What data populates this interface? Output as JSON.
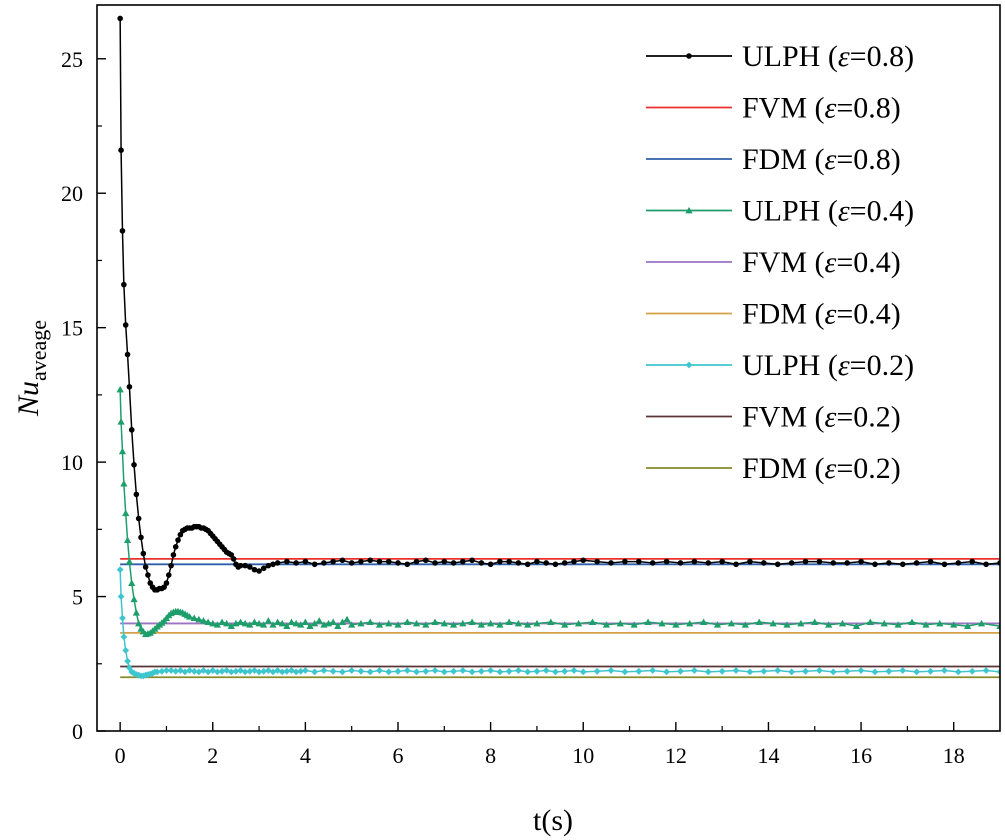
{
  "chart_data": {
    "type": "line",
    "title": "",
    "xlabel": "t(s)",
    "ylabel": {
      "main": "Nu",
      "sub": "aveage"
    },
    "xlim": [
      -0.5,
      19
    ],
    "ylim": [
      0,
      27
    ],
    "x_ticks": [
      "0",
      "2",
      "4",
      "6",
      "8",
      "10",
      "12",
      "14",
      "16",
      "18"
    ],
    "y_ticks": [
      "0",
      "5",
      "10",
      "15",
      "20",
      "25"
    ],
    "grid": false,
    "legend_position": "top-right",
    "series": [
      {
        "name": "ULPH (ε=0.8)",
        "name_prefix": "ULPH (",
        "name_symbol": "ε",
        "name_suffix": "=0.8)",
        "color": "#000000",
        "marker": "circle",
        "x": [
          0.0,
          0.02,
          0.05,
          0.08,
          0.12,
          0.16,
          0.2,
          0.25,
          0.3,
          0.35,
          0.4,
          0.45,
          0.5,
          0.55,
          0.6,
          0.65,
          0.7,
          0.75,
          0.8,
          0.85,
          0.9,
          0.95,
          1.0,
          1.05,
          1.1,
          1.15,
          1.2,
          1.25,
          1.3,
          1.35,
          1.4,
          1.45,
          1.5,
          1.55,
          1.6,
          1.65,
          1.7,
          1.75,
          1.8,
          1.85,
          1.9,
          1.95,
          2.0,
          2.05,
          2.1,
          2.15,
          2.2,
          2.25,
          2.3,
          2.35,
          2.4,
          2.45,
          2.5,
          2.55,
          2.6,
          2.7,
          2.8,
          2.9,
          3.0,
          3.1,
          3.2,
          3.3,
          3.4,
          3.6,
          3.8,
          4.0,
          4.2,
          4.4,
          4.6,
          4.8,
          5.0,
          5.2,
          5.4,
          5.6,
          5.8,
          6.0,
          6.2,
          6.4,
          6.6,
          6.8,
          7.0,
          7.2,
          7.4,
          7.6,
          7.8,
          8.0,
          8.2,
          8.4,
          8.6,
          8.8,
          9.0,
          9.2,
          9.4,
          9.6,
          9.8,
          10.0,
          10.3,
          10.6,
          10.9,
          11.2,
          11.5,
          11.8,
          12.1,
          12.4,
          12.7,
          13.0,
          13.3,
          13.6,
          13.9,
          14.2,
          14.5,
          14.8,
          15.1,
          15.4,
          15.7,
          16.0,
          16.3,
          16.6,
          16.9,
          17.2,
          17.5,
          17.8,
          18.1,
          18.4,
          18.7,
          19.0
        ],
        "values": [
          26.5,
          21.6,
          18.6,
          16.6,
          15.1,
          14.0,
          12.8,
          11.2,
          9.9,
          8.8,
          7.9,
          7.2,
          6.6,
          6.1,
          5.8,
          5.5,
          5.35,
          5.25,
          5.25,
          5.3,
          5.3,
          5.35,
          5.5,
          5.8,
          6.15,
          6.55,
          6.85,
          7.1,
          7.3,
          7.45,
          7.5,
          7.55,
          7.55,
          7.55,
          7.6,
          7.6,
          7.6,
          7.55,
          7.55,
          7.5,
          7.45,
          7.35,
          7.25,
          7.15,
          7.05,
          6.95,
          6.85,
          6.75,
          6.65,
          6.6,
          6.55,
          6.4,
          6.2,
          6.1,
          6.15,
          6.15,
          6.1,
          6.0,
          5.95,
          6.05,
          6.15,
          6.2,
          6.25,
          6.3,
          6.25,
          6.3,
          6.2,
          6.25,
          6.3,
          6.35,
          6.25,
          6.3,
          6.35,
          6.3,
          6.3,
          6.25,
          6.2,
          6.3,
          6.35,
          6.25,
          6.3,
          6.25,
          6.3,
          6.35,
          6.25,
          6.2,
          6.3,
          6.3,
          6.25,
          6.2,
          6.3,
          6.25,
          6.2,
          6.25,
          6.3,
          6.35,
          6.3,
          6.25,
          6.3,
          6.3,
          6.25,
          6.3,
          6.25,
          6.3,
          6.25,
          6.3,
          6.2,
          6.3,
          6.25,
          6.2,
          6.25,
          6.3,
          6.3,
          6.25,
          6.25,
          6.3,
          6.2,
          6.25,
          6.2,
          6.25,
          6.3,
          6.2,
          6.25,
          6.3,
          6.2,
          6.25
        ]
      },
      {
        "name": "FVM (ε=0.8)",
        "name_prefix": "FVM (",
        "name_symbol": "ε",
        "name_suffix": "=0.8)",
        "color": "#e8312c",
        "marker": "none",
        "x": [
          0.0,
          19.0
        ],
        "values": [
          6.4,
          6.4
        ]
      },
      {
        "name": "FDM (ε=0.8)",
        "name_prefix": "FDM (",
        "name_symbol": "ε",
        "name_suffix": "=0.8)",
        "color": "#2f5fa8",
        "marker": "none",
        "x": [
          0.0,
          19.0
        ],
        "values": [
          6.2,
          6.2
        ]
      },
      {
        "name": "ULPH (ε=0.4)",
        "name_prefix": "ULPH (",
        "name_symbol": "ε",
        "name_suffix": "=0.4)",
        "color": "#1e9e6a",
        "marker": "triangle",
        "x": [
          0.0,
          0.02,
          0.05,
          0.08,
          0.12,
          0.16,
          0.2,
          0.25,
          0.3,
          0.35,
          0.4,
          0.45,
          0.5,
          0.55,
          0.6,
          0.65,
          0.7,
          0.75,
          0.8,
          0.85,
          0.9,
          0.95,
          1.0,
          1.05,
          1.1,
          1.15,
          1.2,
          1.25,
          1.3,
          1.35,
          1.4,
          1.45,
          1.5,
          1.6,
          1.7,
          1.8,
          1.9,
          2.0,
          2.1,
          2.2,
          2.3,
          2.4,
          2.5,
          2.6,
          2.7,
          2.8,
          2.9,
          3.0,
          3.1,
          3.2,
          3.3,
          3.4,
          3.5,
          3.6,
          3.7,
          3.8,
          3.9,
          4.0,
          4.1,
          4.2,
          4.3,
          4.4,
          4.5,
          4.6,
          4.7,
          4.8,
          4.9,
          5.0,
          5.2,
          5.4,
          5.6,
          5.8,
          6.0,
          6.2,
          6.4,
          6.6,
          6.8,
          7.0,
          7.2,
          7.4,
          7.6,
          7.8,
          8.0,
          8.2,
          8.4,
          8.6,
          8.8,
          9.0,
          9.3,
          9.6,
          9.9,
          10.2,
          10.5,
          10.8,
          11.1,
          11.4,
          11.7,
          12.0,
          12.3,
          12.6,
          12.9,
          13.2,
          13.5,
          13.8,
          14.1,
          14.4,
          14.7,
          15.0,
          15.3,
          15.6,
          15.9,
          16.2,
          16.5,
          16.8,
          17.1,
          17.4,
          17.7,
          18.0,
          18.3,
          18.6,
          19.0
        ],
        "values": [
          12.7,
          11.5,
          10.4,
          9.2,
          8.1,
          7.1,
          6.3,
          5.5,
          4.9,
          4.4,
          4.0,
          3.8,
          3.7,
          3.6,
          3.62,
          3.65,
          3.72,
          3.8,
          3.88,
          3.95,
          4.02,
          4.1,
          4.2,
          4.3,
          4.38,
          4.42,
          4.45,
          4.45,
          4.42,
          4.4,
          4.35,
          4.3,
          4.25,
          4.2,
          4.15,
          4.1,
          4.05,
          4.0,
          3.95,
          4.05,
          4.0,
          3.9,
          4.0,
          4.05,
          4.0,
          3.95,
          4.05,
          4.0,
          3.95,
          4.1,
          3.95,
          4.05,
          4.0,
          3.9,
          4.05,
          4.0,
          3.95,
          4.05,
          3.9,
          4.0,
          4.1,
          3.95,
          4.0,
          4.05,
          3.9,
          4.05,
          4.15,
          3.95,
          4.0,
          4.05,
          3.95,
          4.0,
          3.95,
          4.05,
          4.0,
          3.95,
          4.05,
          4.0,
          3.95,
          4.0,
          4.05,
          3.95,
          4.0,
          3.95,
          4.05,
          4.0,
          3.95,
          4.0,
          4.05,
          3.95,
          4.0,
          4.05,
          3.95,
          4.0,
          3.95,
          4.05,
          4.0,
          3.95,
          4.0,
          4.05,
          3.95,
          4.0,
          3.95,
          4.05,
          4.0,
          3.95,
          4.0,
          4.05,
          3.95,
          4.0,
          3.9,
          4.05,
          4.0,
          3.95,
          4.05,
          3.95,
          4.0,
          3.95,
          3.9,
          4.0,
          3.9
        ]
      },
      {
        "name": "FVM (ε=0.4)",
        "name_prefix": "FVM (",
        "name_symbol": "ε",
        "name_suffix": "=0.4)",
        "color": "#9b72c4",
        "marker": "none",
        "x": [
          0.0,
          19.0
        ],
        "values": [
          4.0,
          4.0
        ]
      },
      {
        "name": "FDM (ε=0.4)",
        "name_prefix": "FDM (",
        "name_symbol": "ε",
        "name_suffix": "=0.4)",
        "color": "#d4a145",
        "marker": "none",
        "x": [
          0.0,
          19.0
        ],
        "values": [
          3.65,
          3.65
        ]
      },
      {
        "name": "ULPH (ε=0.2)",
        "name_prefix": "ULPH (",
        "name_symbol": "ε",
        "name_suffix": "=0.2)",
        "color": "#3ec6cf",
        "marker": "diamond",
        "x": [
          0.0,
          0.02,
          0.05,
          0.08,
          0.12,
          0.16,
          0.2,
          0.25,
          0.3,
          0.35,
          0.4,
          0.45,
          0.5,
          0.55,
          0.6,
          0.65,
          0.7,
          0.75,
          0.8,
          0.9,
          1.0,
          1.1,
          1.2,
          1.3,
          1.4,
          1.5,
          1.6,
          1.7,
          1.8,
          1.9,
          2.0,
          2.1,
          2.2,
          2.3,
          2.4,
          2.5,
          2.6,
          2.7,
          2.8,
          2.9,
          3.0,
          3.1,
          3.2,
          3.3,
          3.4,
          3.5,
          3.6,
          3.7,
          3.8,
          3.9,
          4.0,
          4.2,
          4.4,
          4.6,
          4.8,
          5.0,
          5.2,
          5.4,
          5.6,
          5.8,
          6.0,
          6.2,
          6.4,
          6.6,
          6.8,
          7.0,
          7.2,
          7.4,
          7.6,
          7.8,
          8.0,
          8.2,
          8.4,
          8.6,
          8.8,
          9.0,
          9.2,
          9.4,
          9.6,
          9.8,
          10.0,
          10.3,
          10.6,
          10.9,
          11.2,
          11.5,
          11.8,
          12.1,
          12.4,
          12.7,
          13.0,
          13.3,
          13.6,
          13.9,
          14.2,
          14.5,
          14.8,
          15.1,
          15.4,
          15.7,
          16.0,
          16.3,
          16.6,
          16.9,
          17.2,
          17.5,
          17.8,
          18.1,
          18.4,
          18.7,
          19.0
        ],
        "values": [
          6.0,
          5.0,
          4.2,
          3.5,
          3.0,
          2.6,
          2.35,
          2.2,
          2.15,
          2.1,
          2.08,
          2.05,
          2.05,
          2.08,
          2.1,
          2.12,
          2.15,
          2.2,
          2.2,
          2.22,
          2.25,
          2.25,
          2.22,
          2.25,
          2.2,
          2.25,
          2.22,
          2.2,
          2.25,
          2.2,
          2.25,
          2.2,
          2.22,
          2.25,
          2.2,
          2.22,
          2.25,
          2.2,
          2.22,
          2.25,
          2.2,
          2.22,
          2.25,
          2.2,
          2.25,
          2.2,
          2.22,
          2.25,
          2.2,
          2.22,
          2.25,
          2.2,
          2.25,
          2.22,
          2.2,
          2.25,
          2.22,
          2.2,
          2.25,
          2.2,
          2.22,
          2.25,
          2.2,
          2.22,
          2.25,
          2.2,
          2.22,
          2.25,
          2.2,
          2.22,
          2.25,
          2.2,
          2.22,
          2.25,
          2.2,
          2.22,
          2.25,
          2.2,
          2.22,
          2.25,
          2.2,
          2.22,
          2.25,
          2.2,
          2.22,
          2.25,
          2.2,
          2.22,
          2.25,
          2.2,
          2.22,
          2.25,
          2.2,
          2.22,
          2.25,
          2.2,
          2.22,
          2.25,
          2.2,
          2.22,
          2.25,
          2.2,
          2.22,
          2.25,
          2.2,
          2.22,
          2.25,
          2.2,
          2.22,
          2.25,
          2.2
        ]
      },
      {
        "name": "FVM (ε=0.2)",
        "name_prefix": "FVM (",
        "name_symbol": "ε",
        "name_suffix": "=0.2)",
        "color": "#5a3536",
        "marker": "none",
        "x": [
          0.0,
          19.0
        ],
        "values": [
          2.4,
          2.4
        ]
      },
      {
        "name": "FDM (ε=0.2)",
        "name_prefix": "FDM (",
        "name_symbol": "ε",
        "name_suffix": "=0.2)",
        "color": "#8a8a2a",
        "marker": "none",
        "x": [
          0.0,
          19.0
        ],
        "values": [
          2.0,
          2.0
        ]
      }
    ]
  }
}
